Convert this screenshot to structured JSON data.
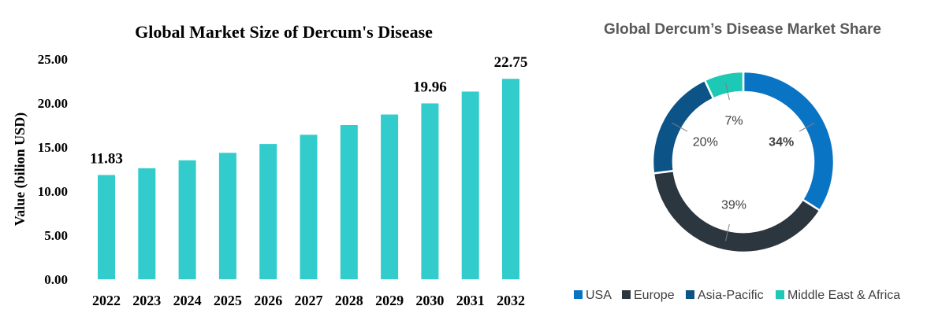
{
  "chart_data": [
    {
      "type": "bar",
      "title": "Global Market Size of Dercum's Disease",
      "xlabel": "",
      "ylabel": "Value (bilion USD)",
      "categories": [
        "2022",
        "2023",
        "2024",
        "2025",
        "2026",
        "2027",
        "2028",
        "2029",
        "2030",
        "2031",
        "2032"
      ],
      "values": [
        11.83,
        12.6,
        13.5,
        14.35,
        15.35,
        16.4,
        17.5,
        18.7,
        19.96,
        21.3,
        22.75
      ],
      "data_labels": [
        {
          "index": 0,
          "text": "11.83"
        },
        {
          "index": 8,
          "text": "19.96"
        },
        {
          "index": 10,
          "text": "22.75"
        }
      ],
      "ylim": [
        0,
        25
      ],
      "yticks": [
        "0.00",
        "5.00",
        "10.00",
        "15.00",
        "20.00",
        "25.00"
      ],
      "ytick_values": [
        0,
        5,
        10,
        15,
        20,
        25
      ],
      "grid": false,
      "colors": {
        "bar": "#33CCCC"
      }
    },
    {
      "type": "pie",
      "style": "donut",
      "title": "Global Dercum’s Disease Market Share",
      "categories": [
        "USA",
        "Europe",
        "Asia-Pacific",
        "Middle East & Africa"
      ],
      "values": [
        34,
        39,
        20,
        7
      ],
      "labels": [
        "34%",
        "39%",
        "20%",
        "7%"
      ],
      "colors": [
        "#0A74C4",
        "#2B363F",
        "#0C5487",
        "#1DC8B4"
      ],
      "legend": "bottom"
    }
  ]
}
